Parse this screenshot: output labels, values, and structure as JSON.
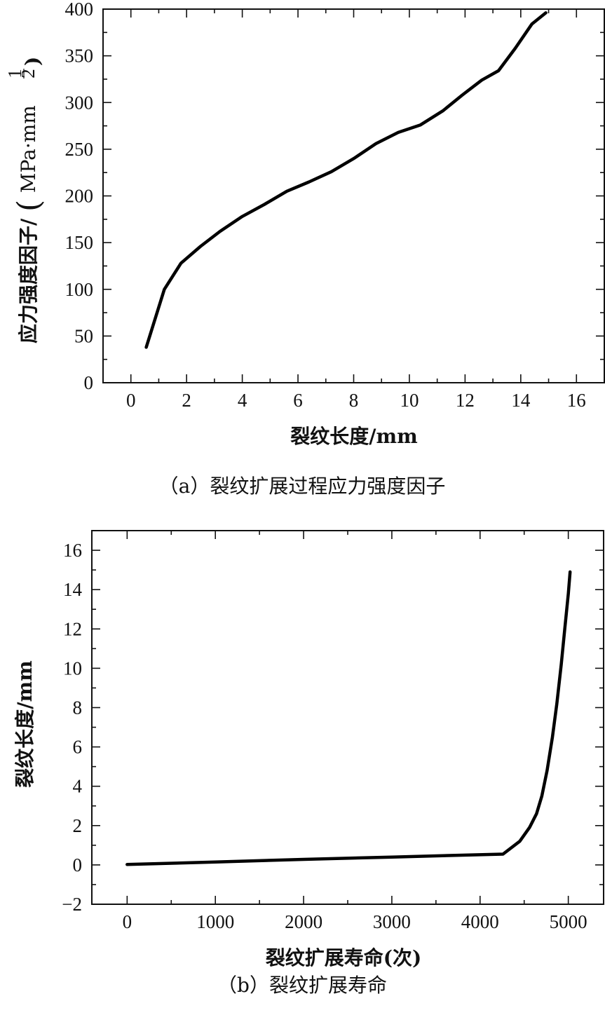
{
  "chart_data": [
    {
      "type": "line",
      "xlabel": "裂纹长度/mm",
      "ylabel": "应力强度因子/",
      "ylabel_unit": "MPa·mm",
      "ylabel_unit_exponent_num": "1",
      "ylabel_unit_exponent_den": "2",
      "caption": "（a）裂纹扩展过程应力强度因子",
      "xlim": [
        -1,
        17
      ],
      "ylim": [
        0,
        400
      ],
      "xticks": [
        0,
        2,
        4,
        6,
        8,
        10,
        12,
        14,
        16
      ],
      "yticks": [
        0,
        50,
        100,
        150,
        200,
        250,
        300,
        350,
        400
      ],
      "xtick_labels": [
        "0",
        "2",
        "4",
        "6",
        "8",
        "10",
        "12",
        "14",
        "16"
      ],
      "ytick_labels": [
        "0",
        "50",
        "100",
        "150",
        "200",
        "250",
        "300",
        "350",
        "400"
      ],
      "series": [
        {
          "x": [
            0.55,
            1.2,
            1.8,
            2.5,
            3.2,
            4.0,
            4.8,
            5.6,
            6.4,
            7.2,
            8.0,
            8.8,
            9.6,
            10.4,
            11.2,
            11.9,
            12.6,
            13.2,
            13.8,
            14.4,
            14.9
          ],
          "y": [
            38,
            100,
            128,
            146,
            162,
            178,
            191,
            205,
            215,
            226,
            240,
            256,
            268,
            276,
            291,
            308,
            324,
            334,
            358,
            384,
            396
          ]
        }
      ]
    },
    {
      "type": "line",
      "xlabel": "裂纹扩展寿命(次)",
      "ylabel": "裂纹长度/mm",
      "caption": "（b）裂纹扩展寿命",
      "xlim": [
        -400,
        5400
      ],
      "ylim": [
        -2,
        17
      ],
      "xticks": [
        0,
        1000,
        2000,
        3000,
        4000,
        5000
      ],
      "yticks": [
        -2,
        0,
        2,
        4,
        6,
        8,
        10,
        12,
        14,
        16
      ],
      "xtick_labels": [
        "0",
        "1000",
        "2000",
        "3000",
        "4000",
        "5000"
      ],
      "ytick_labels": [
        "−2",
        "0",
        "2",
        "4",
        "6",
        "8",
        "10",
        "12",
        "14",
        "16"
      ],
      "series": [
        {
          "x": [
            0,
            1000,
            2000,
            3000,
            4260,
            4450,
            4560,
            4640,
            4700,
            4760,
            4820,
            4870,
            4920,
            4960,
            5000,
            5020
          ],
          "y": [
            0.02,
            0.15,
            0.28,
            0.4,
            0.55,
            1.2,
            1.9,
            2.6,
            3.5,
            4.8,
            6.5,
            8.2,
            10.2,
            12.0,
            13.8,
            14.9
          ]
        }
      ]
    }
  ]
}
